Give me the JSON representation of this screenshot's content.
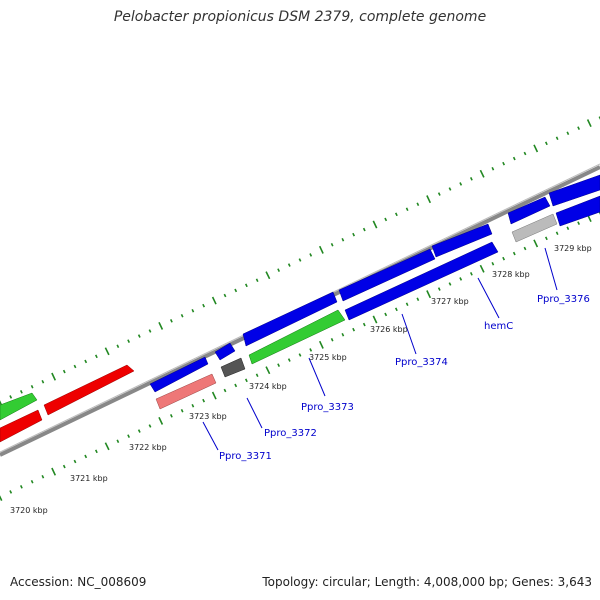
{
  "title": "Pelobacter propionicus DSM 2379, complete genome",
  "footer": {
    "accession": "Accession: NC_008609",
    "summary": "Topology: circular; Length: 4,008,000 bp; Genes: 3,643"
  },
  "colors": {
    "backbone": "#888888",
    "tick": "#228822",
    "label": "#0000cc",
    "blue": "#0000e6",
    "red": "#ee0000",
    "green": "#33cc33",
    "pink": "#ee7777",
    "darkgray": "#555555",
    "lightgray": "#bbbbbb"
  },
  "axis": {
    "unit": "kbp",
    "tick_labels": [
      "3720 kbp",
      "3721 kbp",
      "3722 kbp",
      "3723 kbp",
      "3724 kbp",
      "3725 kbp",
      "3726 kbp",
      "3727 kbp",
      "3728 kbp",
      "3729 kbp"
    ]
  },
  "gene_labels": [
    "Ppro_3371",
    "Ppro_3372",
    "Ppro_3373",
    "Ppro_3374",
    "hemC",
    "Ppro_3376"
  ]
}
